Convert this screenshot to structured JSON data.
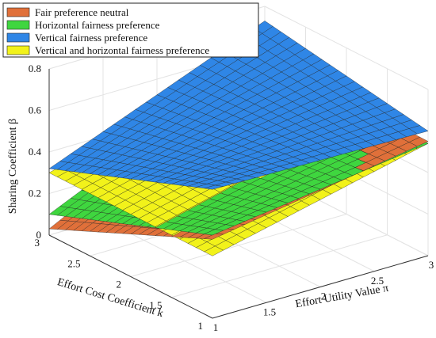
{
  "chart_data": {
    "type": "surface3d",
    "zlabel": "Sharing Coefficient β",
    "ylabel": "Effort Cost Coefficient k",
    "xlabel": "Effort Utility Value π",
    "zlim": [
      0,
      0.8
    ],
    "xlim": [
      1,
      3
    ],
    "ylim": [
      1,
      3
    ],
    "z_ticks": [
      "0",
      "0.2",
      "0.4",
      "0.6",
      "0.8"
    ],
    "x_ticks": [
      "1",
      "1.5",
      "2",
      "2.5",
      "3"
    ],
    "y_ticks": [
      "1",
      "1.5",
      "2",
      "2.5",
      "3"
    ],
    "grid": true,
    "legend_position": "top-left",
    "series": [
      {
        "name": "Fair preference neutral",
        "color": "#e0703a",
        "corner_values": {
          "pi1_k1": 0.38,
          "pi3_k1": 0.55,
          "pi1_k3": 0.03,
          "pi3_k3": 0.56
        }
      },
      {
        "name": "Horizontal fairness preference",
        "color": "#3fd63f",
        "corner_values": {
          "pi1_k1": 0.4,
          "pi3_k1": 0.54,
          "pi1_k3": 0.1,
          "pi3_k3": 0.57
        }
      },
      {
        "name": "Vertical fairness preference",
        "color": "#2f86e6",
        "corner_values": {
          "pi1_k1": 0.62,
          "pi3_k1": 0.6,
          "pi1_k3": 0.32,
          "pi3_k3": 0.73
        }
      },
      {
        "name": "Vertical and horizontal fairness preference",
        "color": "#f2f21a",
        "corner_values": {
          "pi1_k1": 0.3,
          "pi3_k1": 0.54,
          "pi1_k3": 0.3,
          "pi3_k3": 0.58
        }
      }
    ]
  }
}
